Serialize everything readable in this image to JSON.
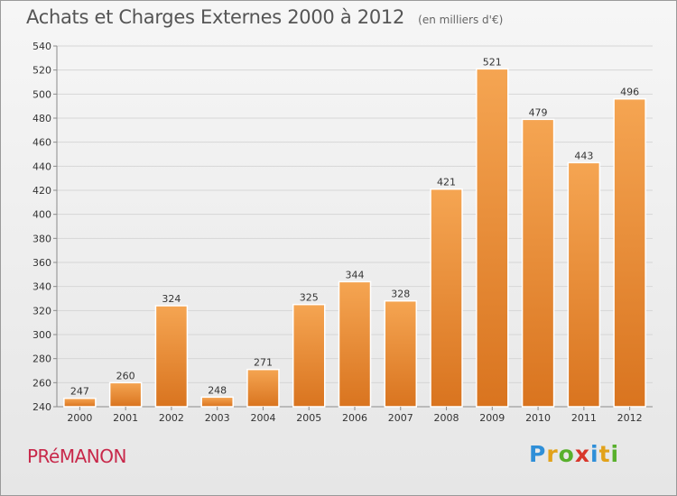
{
  "title": "Achats et Charges Externes 2000 à 2012",
  "unit_note": "(en milliers d'€)",
  "town": "PRéMANON",
  "logo": {
    "text": "Proxiti",
    "letters": [
      {
        "ch": "P",
        "color": "#2f8fd8"
      },
      {
        "ch": "r",
        "color": "#e2a21a"
      },
      {
        "ch": "o",
        "color": "#58b02c"
      },
      {
        "ch": "x",
        "color": "#d8362b"
      },
      {
        "ch": "i",
        "color": "#2f8fd8"
      },
      {
        "ch": "t",
        "color": "#e2a21a"
      },
      {
        "ch": "i",
        "color": "#58b02c"
      }
    ]
  },
  "colors": {
    "bar_light": "#f5a552",
    "bar_dark": "#d9741f",
    "grid": "#d6d6d6",
    "axis": "#8a8a8a",
    "text": "#333333"
  },
  "chart_data": {
    "type": "bar",
    "title": "Achats et Charges Externes 2000 à 2012",
    "subtitle": "(en milliers d'€)",
    "xlabel": "",
    "ylabel": "",
    "categories": [
      "2000",
      "2001",
      "2002",
      "2003",
      "2004",
      "2005",
      "2006",
      "2007",
      "2008",
      "2009",
      "2010",
      "2011",
      "2012"
    ],
    "values": [
      247,
      260,
      324,
      248,
      271,
      325,
      344,
      328,
      421,
      521,
      479,
      443,
      496
    ],
    "ylim": [
      240,
      540
    ],
    "yticks": [
      240,
      260,
      280,
      300,
      320,
      340,
      360,
      380,
      400,
      420,
      440,
      460,
      480,
      500,
      520,
      540
    ],
    "grid": true,
    "data_labels": true
  }
}
